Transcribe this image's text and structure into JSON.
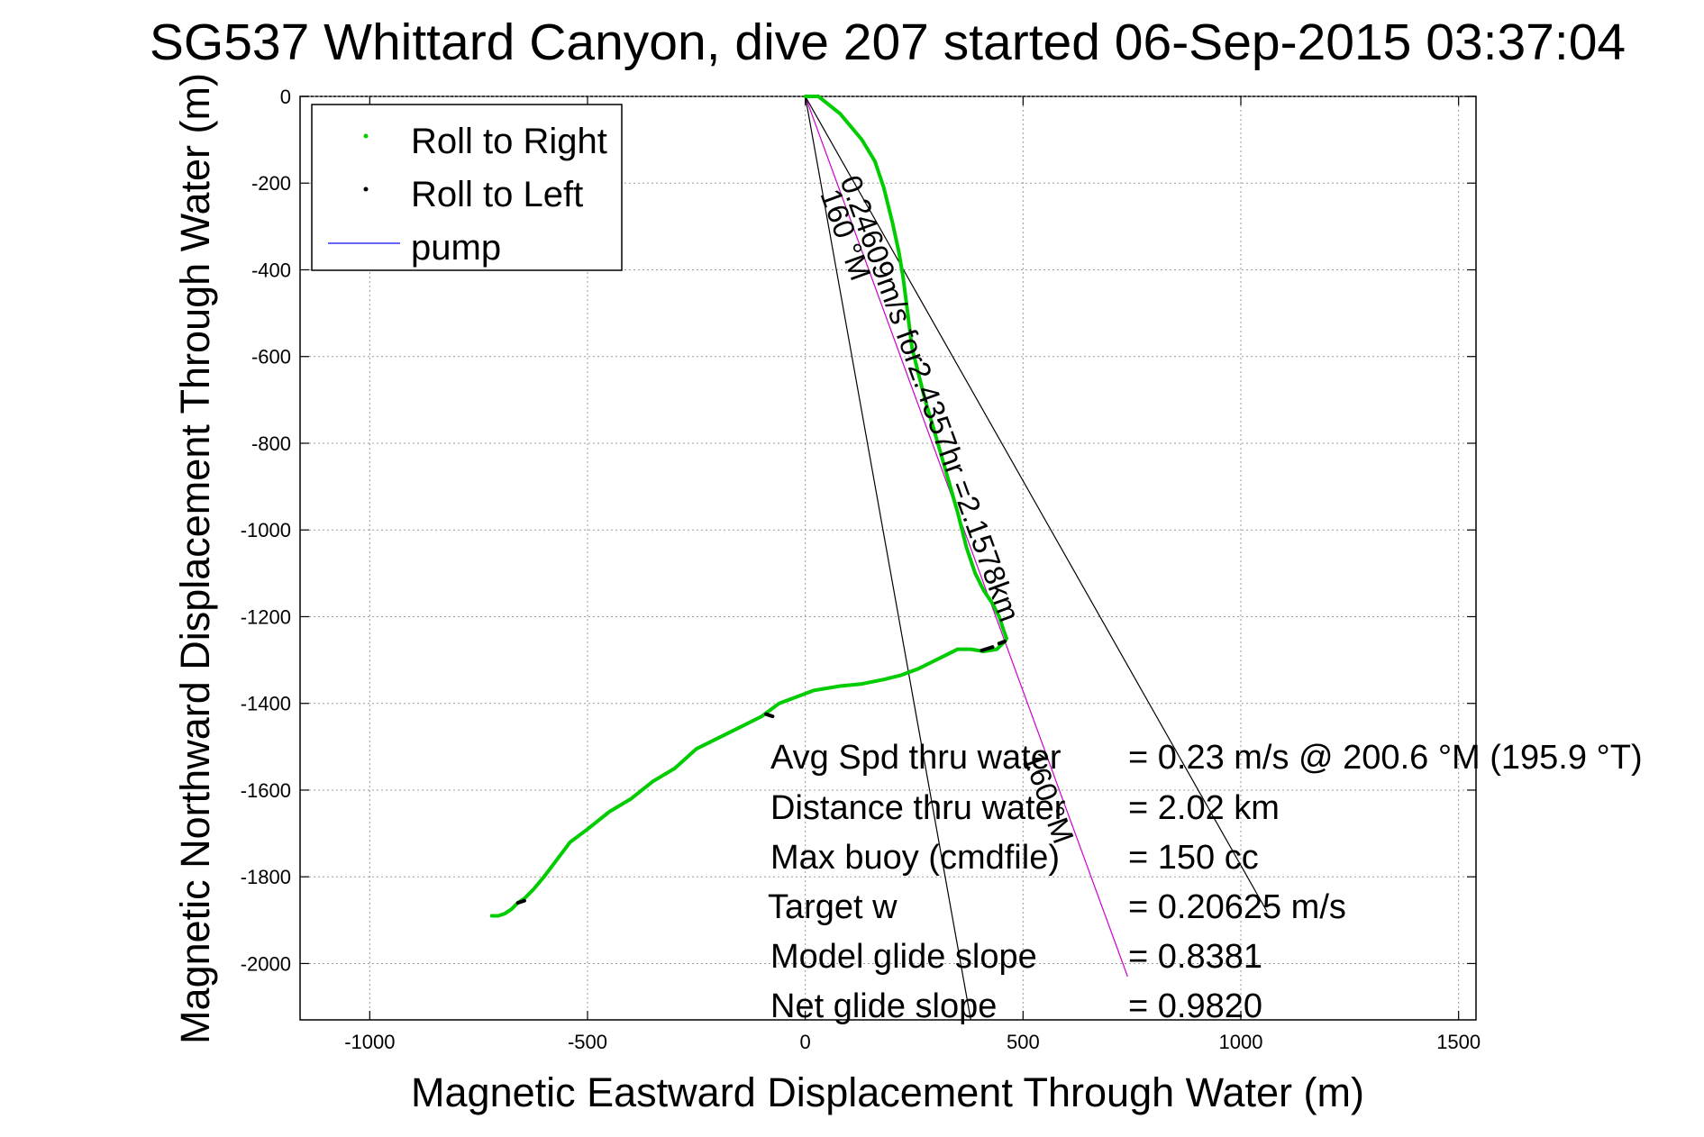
{
  "chart_data": {
    "type": "line",
    "title": "SG537 Whittard Canyon, dive 207 started 06-Sep-2015 03:37:04",
    "xlabel": "Magnetic Eastward Displacement Through Water (m)",
    "ylabel": "Magnetic Northward Displacement Through Water (m)",
    "xlim": [
      -1160,
      1540
    ],
    "ylim": [
      -2130,
      0
    ],
    "xticks": [
      -1000,
      -500,
      0,
      500,
      1000,
      1500
    ],
    "xtick_labels": [
      "-1000",
      "-500",
      "0",
      "500",
      "1000",
      "1500"
    ],
    "yticks": [
      0,
      -200,
      -400,
      -600,
      -800,
      -1000,
      -1200,
      -1400,
      -1600,
      -1800,
      -2000
    ],
    "ytick_labels": [
      "0",
      "-200",
      "-400",
      "-600",
      "-800",
      "-1000",
      "-1200",
      "-1400",
      "-1600",
      "-1800",
      "-2000"
    ],
    "grid": true,
    "legend": {
      "placement": "top-left",
      "entries": [
        {
          "label": "Roll to Right",
          "color": "#00cc00",
          "marker": "dot"
        },
        {
          "label": "Roll to Left",
          "color": "#000000",
          "marker": "dot"
        },
        {
          "label": "pump",
          "color": "#3333ff",
          "marker": "line"
        }
      ]
    },
    "series": [
      {
        "name": "Roll to Right",
        "color": "#00cc00",
        "x": [
          0,
          30,
          80,
          130,
          160,
          180,
          200,
          215,
          225,
          235,
          245,
          260,
          275,
          290,
          310,
          330,
          350,
          370,
          390,
          410,
          430,
          445,
          455,
          462,
          460,
          440,
          410,
          380,
          350,
          320,
          290,
          260,
          220,
          180,
          130,
          80,
          20,
          -20,
          -60,
          -100,
          -150,
          -200,
          -250,
          -300,
          -350,
          -400,
          -450,
          -500,
          -540,
          -570,
          -600,
          -625,
          -645,
          -660,
          -675,
          -690,
          -705,
          -720
        ],
        "y": [
          0,
          0,
          -40,
          -100,
          -150,
          -210,
          -290,
          -360,
          -420,
          -500,
          -580,
          -640,
          -700,
          -750,
          -820,
          -890,
          -960,
          -1040,
          -1100,
          -1140,
          -1170,
          -1200,
          -1230,
          -1250,
          -1255,
          -1275,
          -1280,
          -1275,
          -1275,
          -1290,
          -1305,
          -1320,
          -1335,
          -1345,
          -1355,
          -1360,
          -1370,
          -1385,
          -1400,
          -1430,
          -1455,
          -1480,
          -1505,
          -1550,
          -1580,
          -1620,
          -1650,
          -1690,
          -1720,
          -1760,
          -1800,
          -1830,
          -1850,
          -1860,
          -1875,
          -1885,
          -1890,
          -1890
        ]
      },
      {
        "name": "Roll to Left",
        "color": "#000000",
        "segments": [
          {
            "x": [
              -90,
              -75
            ],
            "y": [
              -1425,
              -1430
            ]
          },
          {
            "x": [
              -660,
              -645
            ],
            "y": [
              -1860,
              -1855
            ]
          },
          {
            "x": [
              405,
              430
            ],
            "y": [
              -1278,
              -1270
            ]
          },
          {
            "x": [
              445,
              458
            ],
            "y": [
              -1262,
              -1257
            ]
          }
        ]
      }
    ],
    "reference_lines": [
      {
        "name": "current_vector",
        "color": "#cc00cc",
        "x": [
          0,
          740
        ],
        "y": [
          0,
          -2030
        ]
      },
      {
        "name": "heading_left",
        "color": "#000000",
        "x": [
          0,
          380
        ],
        "y": [
          0,
          -2130
        ]
      },
      {
        "name": "heading_right",
        "color": "#000000",
        "x": [
          0,
          1060
        ],
        "y": [
          0,
          -1880
        ]
      }
    ],
    "annotations": [
      {
        "text": "0.24609m/s for2.4357hr =2.1578km"
      },
      {
        "text": "160 °M"
      },
      {
        "text": "160 °M"
      }
    ],
    "stats": [
      {
        "label": "Avg Spd thru water",
        "value": "=  0.23 m/s @ 200.6 °M (195.9 °T)"
      },
      {
        "label": "Distance thru water",
        "value": "=  2.02 km"
      },
      {
        "label": "Max buoy (cmdfile)",
        "value": "= 150 cc"
      },
      {
        "label": "Target w",
        "value": "= 0.20625 m/s"
      },
      {
        "label": "Model glide slope",
        "value": "= 0.8381"
      },
      {
        "label": "Net glide slope",
        "value": "= 0.9820"
      }
    ]
  }
}
